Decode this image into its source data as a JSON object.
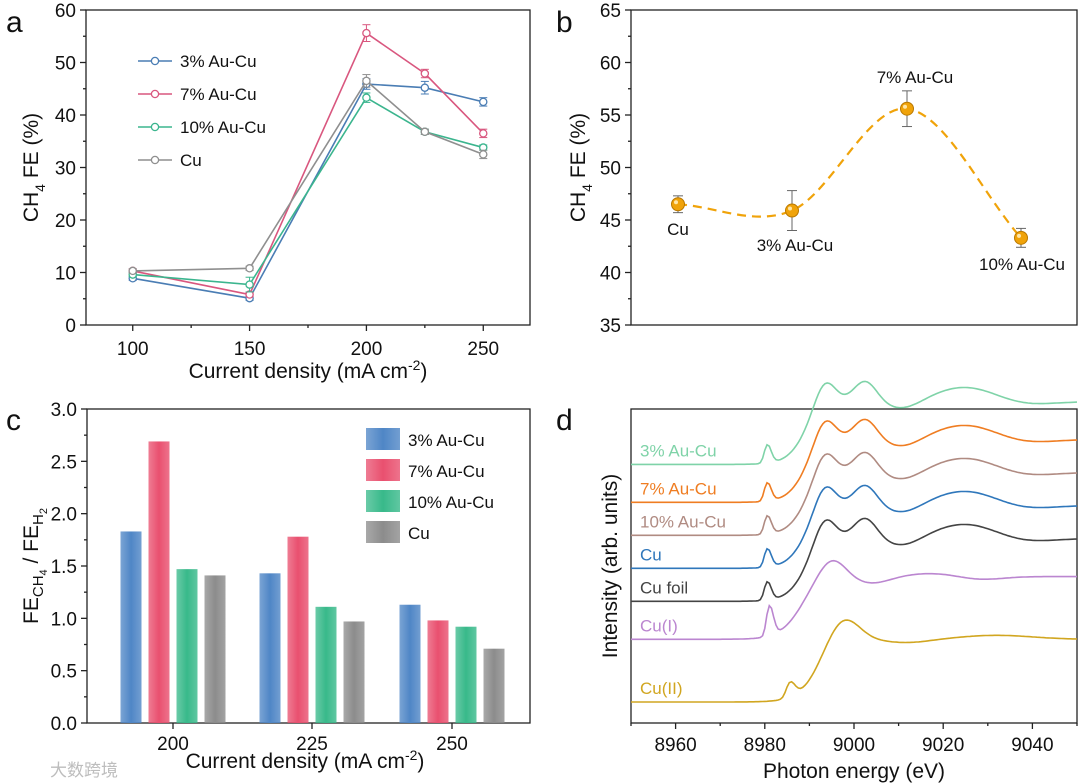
{
  "panels": {
    "a": "a",
    "b": "b",
    "c": "c",
    "d": "d"
  },
  "watermark": "大数跨境",
  "chart_data": [
    {
      "panel": "a",
      "type": "line",
      "xlabel": "Current density (mA cm",
      "xlabel_sup": "-2",
      "xlabel_end": ")",
      "ylabel_pre": "CH",
      "ylabel_sub": "4",
      "ylabel_post": " FE (%)",
      "xlim": [
        80,
        270
      ],
      "ylim": [
        0,
        60
      ],
      "xticks": [
        "100",
        "150",
        "200",
        "250"
      ],
      "yticks": [
        "0",
        "10",
        "20",
        "30",
        "40",
        "50",
        "60"
      ],
      "grid": false,
      "legend_position": "top-left",
      "series": [
        {
          "name": "3% Au-Cu",
          "color": "#4a7db4",
          "x": [
            100,
            150,
            200,
            225,
            250
          ],
          "y": [
            8.9,
            5.1,
            45.9,
            45.2,
            42.5
          ],
          "err": [
            0.4,
            0.4,
            1.0,
            1.2,
            0.8
          ]
        },
        {
          "name": "7% Au-Cu",
          "color": "#d9577f",
          "x": [
            100,
            150,
            200,
            225,
            250
          ],
          "y": [
            10.3,
            5.8,
            55.6,
            47.9,
            36.5
          ],
          "err": [
            0.4,
            0.4,
            1.6,
            0.8,
            0.8
          ]
        },
        {
          "name": "10% Au-Cu",
          "color": "#3bb58e",
          "x": [
            100,
            150,
            200,
            225,
            250
          ],
          "y": [
            9.6,
            7.7,
            43.3,
            36.8,
            33.8
          ],
          "err": [
            0.4,
            1.4,
            0.9,
            0.5,
            0.5
          ]
        },
        {
          "name": "Cu",
          "color": "#8f8f8f",
          "x": [
            100,
            150,
            200,
            225,
            250
          ],
          "y": [
            10.3,
            10.8,
            46.5,
            36.8,
            32.5
          ],
          "err": [
            0.4,
            0.4,
            1.2,
            0.5,
            0.8
          ]
        }
      ]
    },
    {
      "panel": "b",
      "type": "scatter",
      "ylabel_pre": "CH",
      "ylabel_sub": "4",
      "ylabel_post": " FE (%)",
      "ylim": [
        35,
        65
      ],
      "yticks": [
        "35",
        "40",
        "45",
        "50",
        "55",
        "60",
        "65"
      ],
      "color": "#f0a30a",
      "points": [
        {
          "label": "Cu",
          "y": 46.5,
          "err": 0.8
        },
        {
          "label": "3% Au-Cu",
          "y": 45.9,
          "err": 1.9
        },
        {
          "label": "7% Au-Cu",
          "y": 55.6,
          "err": 1.7
        },
        {
          "label": "10% Au-Cu",
          "y": 43.3,
          "err": 0.9
        }
      ]
    },
    {
      "panel": "c",
      "type": "bar",
      "xlabel": "Current density (mA cm",
      "xlabel_sup": "-2",
      "xlabel_end": ")",
      "ylabel_fe": "FE",
      "ylabel_ch": "CH",
      "ylabel_ch_sub": "4",
      "ylabel_sep": " / ",
      "ylabel_h": "H",
      "ylabel_h_sub": "2",
      "ylim": [
        0,
        3.0
      ],
      "yticks": [
        "0.0",
        "0.5",
        "1.0",
        "1.5",
        "2.0",
        "2.5",
        "3.0"
      ],
      "categories": [
        "200",
        "225",
        "250"
      ],
      "legend_position": "top-right",
      "series": [
        {
          "name": "3% Au-Cu",
          "color": "#4f86c6",
          "values": [
            1.83,
            1.43,
            1.13
          ]
        },
        {
          "name": "7% Au-Cu",
          "color": "#e9506f",
          "values": [
            2.69,
            1.78,
            0.98
          ]
        },
        {
          "name": "10% Au-Cu",
          "color": "#38b98a",
          "values": [
            1.47,
            1.11,
            0.92
          ]
        },
        {
          "name": "Cu",
          "color": "#8c8c8c",
          "values": [
            1.41,
            0.97,
            0.71
          ]
        }
      ]
    },
    {
      "panel": "d",
      "type": "line",
      "xlabel": "Photon energy (eV)",
      "ylabel": "Intensity (arb. units)",
      "xlim": [
        8950,
        9050
      ],
      "xticks": [
        "8960",
        "8980",
        "9000",
        "9020",
        "9040"
      ],
      "series": [
        {
          "name": "3% Au-Cu",
          "color": "#7fd3a8",
          "offset": 7.2
        },
        {
          "name": "7% Au-Cu",
          "color": "#ef7d22",
          "offset": 6.05
        },
        {
          "name": "10% Au-Cu",
          "color": "#b08b82",
          "offset": 5.05
        },
        {
          "name": "Cu",
          "color": "#2f77bb",
          "offset": 4.05
        },
        {
          "name": "Cu foil",
          "color": "#444444",
          "offset": 3.05
        },
        {
          "name": "Cu(I)",
          "color": "#bb86d0",
          "offset": 1.9
        },
        {
          "name": "Cu(II)",
          "color": "#d1a620",
          "offset": 0.0
        }
      ]
    }
  ]
}
